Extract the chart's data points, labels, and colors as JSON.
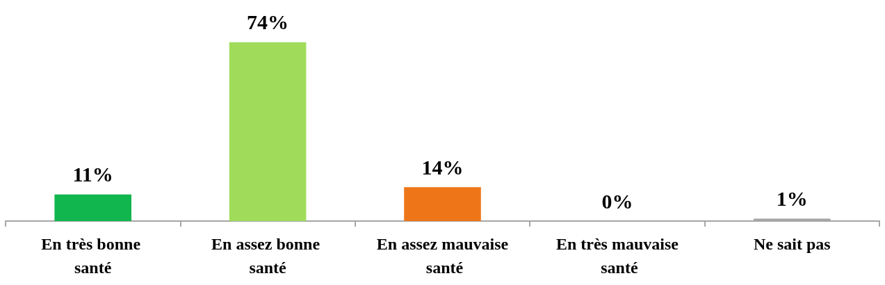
{
  "chart_data": {
    "type": "bar",
    "categories": [
      "En très bonne santé",
      "En assez bonne santé",
      "En assez mauvaise santé",
      "En très mauvaise santé",
      "Ne sait pas"
    ],
    "values": [
      11,
      74,
      14,
      0,
      1
    ],
    "colors": [
      "#12b64f",
      "#a0dc5a",
      "#ee7618",
      "#c00000",
      "#a6a6a6"
    ],
    "value_labels": [
      "11%",
      "74%",
      "14%",
      "0%",
      "1%"
    ],
    "grid": false
  }
}
